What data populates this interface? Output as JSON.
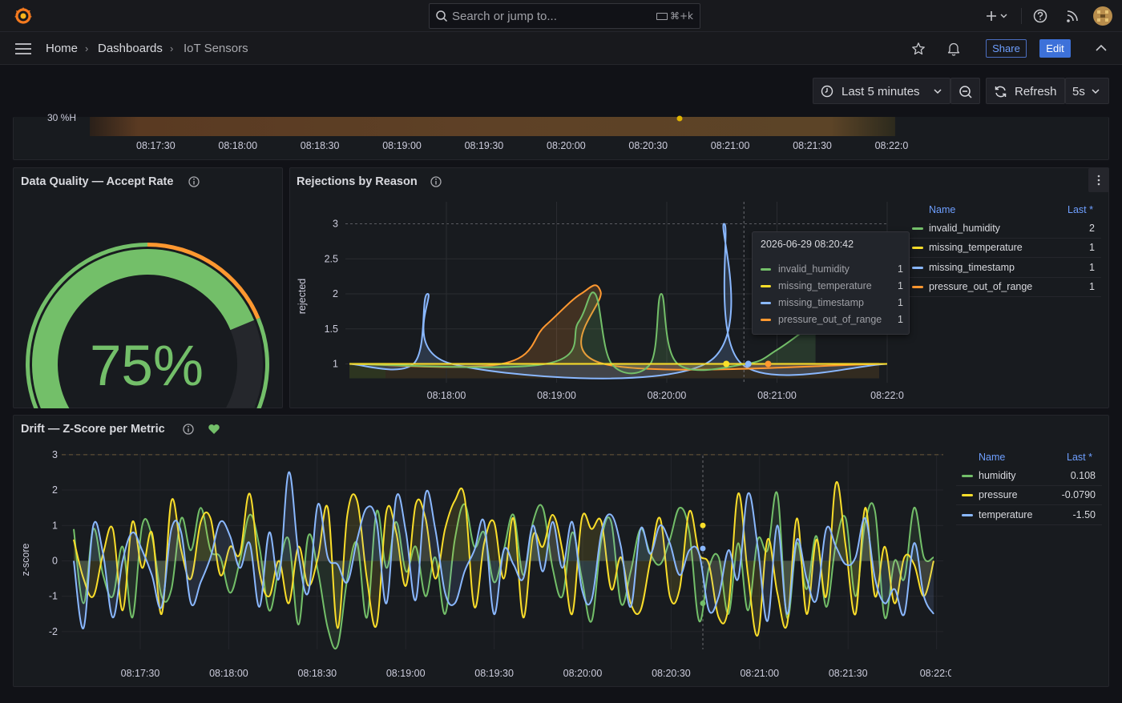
{
  "search": {
    "placeholder": "Search or jump to...",
    "shortcut": "⌘+k"
  },
  "breadcrumb": {
    "home": "Home",
    "dashboards": "Dashboards",
    "current": "IoT Sensors"
  },
  "toolbar": {
    "share_label": "Share",
    "edit_label": "Edit"
  },
  "time_picker": {
    "range_label": "Last 5 minutes",
    "refresh_label": "Refresh",
    "interval_label": "5s"
  },
  "top_panel": {
    "partial_label": "30 %H",
    "x_ticks": [
      "08:17:30",
      "08:18:00",
      "08:18:30",
      "08:19:00",
      "08:19:30",
      "08:20:00",
      "08:20:30",
      "08:21:00",
      "08:21:30",
      "08:22:0"
    ]
  },
  "gauge_panel": {
    "title": "Data Quality — Accept Rate",
    "value_text": "75%",
    "value": 75,
    "min": 0,
    "max": 100,
    "thresholds": [
      {
        "color": "#f2495c"
      },
      {
        "color": "#73bf69"
      },
      {
        "color": "#ff9830"
      },
      {
        "color": "#73bf69"
      }
    ]
  },
  "rejections_panel": {
    "title": "Rejections by Reason",
    "legend": {
      "name_header": "Name",
      "last_header": "Last *",
      "items": [
        {
          "name": "invalid_humidity",
          "last": "2",
          "color": "#73bf69"
        },
        {
          "name": "missing_temperature",
          "last": "1",
          "color": "#fade2a"
        },
        {
          "name": "missing_timestamp",
          "last": "1",
          "color": "#8ab8ff"
        },
        {
          "name": "pressure_out_of_range",
          "last": "1",
          "color": "#ff9830"
        }
      ]
    },
    "tooltip": {
      "time": "2026-06-29 08:20:42",
      "rows": [
        {
          "name": "invalid_humidity",
          "value": "1",
          "color": "#73bf69"
        },
        {
          "name": "missing_temperature",
          "value": "1",
          "color": "#fade2a"
        },
        {
          "name": "missing_timestamp",
          "value": "1",
          "color": "#8ab8ff"
        },
        {
          "name": "pressure_out_of_range",
          "value": "1",
          "color": "#ff9830"
        }
      ]
    }
  },
  "drift_panel": {
    "title": "Drift — Z-Score per Metric",
    "legend": {
      "name_header": "Name",
      "last_header": "Last *",
      "items": [
        {
          "name": "humidity",
          "last": "0.108",
          "color": "#73bf69"
        },
        {
          "name": "pressure",
          "last": "-0.0790",
          "color": "#fade2a"
        },
        {
          "name": "temperature",
          "last": "-1.50",
          "color": "#8ab8ff"
        }
      ]
    }
  },
  "chart_data": [
    {
      "type": "line",
      "id": "rejections",
      "ylabel": "rejected",
      "ylim": [
        0.8,
        3.2
      ],
      "y_ticks": [
        "3",
        "2.5",
        "2",
        "1.5",
        "1"
      ],
      "x_ticks": [
        "08:18:00",
        "08:19:00",
        "08:20:00",
        "08:21:00",
        "08:22:0"
      ],
      "x_minutes": [
        0,
        1,
        2,
        3,
        4
      ],
      "xlim_minutes": [
        -0.88,
        4.0
      ],
      "series": [
        {
          "name": "missing_timestamp",
          "color": "#8ab8ff",
          "points": [
            [
              -0.88,
              1
            ],
            [
              -0.3,
              1
            ],
            [
              -0.17,
              2
            ],
            [
              0.05,
              1
            ],
            [
              2.35,
              1
            ],
            [
              2.52,
              3
            ],
            [
              2.68,
              1
            ],
            [
              4.0,
              1
            ]
          ]
        },
        {
          "name": "pressure_out_of_range",
          "color": "#ff9830",
          "points": [
            [
              -0.88,
              1
            ],
            [
              0.5,
              1
            ],
            [
              0.9,
              1.55
            ],
            [
              1.22,
              2
            ],
            [
              1.4,
              2.03
            ],
            [
              1.43,
              1
            ],
            [
              4.0,
              1
            ]
          ]
        },
        {
          "name": "invalid_humidity",
          "color": "#73bf69",
          "points": [
            [
              -0.88,
              1
            ],
            [
              0.9,
              1
            ],
            [
              1.2,
              1.6
            ],
            [
              1.35,
              2
            ],
            [
              1.5,
              1
            ],
            [
              1.85,
              1
            ],
            [
              1.95,
              2
            ],
            [
              2.1,
              1
            ],
            [
              2.72,
              1
            ],
            [
              3.0,
              1.2
            ],
            [
              3.35,
              1.6
            ]
          ]
        },
        {
          "name": "missing_temperature",
          "color": "#fade2a",
          "points": [
            [
              -0.88,
              1
            ],
            [
              4.0,
              1
            ]
          ]
        }
      ]
    },
    {
      "type": "line",
      "id": "drift",
      "ylabel": "z-score",
      "ylim": [
        -2.5,
        3.2
      ],
      "y_ticks": [
        "3",
        "2",
        "1",
        "0",
        "-1",
        "-2"
      ],
      "x_ticks": [
        "08:17:30",
        "08:18:00",
        "08:18:30",
        "08:19:00",
        "08:19:30",
        "08:20:00",
        "08:20:30",
        "08:21:00",
        "08:21:30",
        "08:22:0"
      ],
      "threshold": 3,
      "series": [
        {
          "name": "humidity",
          "color": "#73bf69",
          "values": [
            0.9,
            -1.2,
            0.9,
            -0.4,
            -1.0,
            0.4,
            -1.6,
            1.0,
            0.7,
            -1.0,
            -0.8,
            1.2,
            0.3,
            1.5,
            0.3,
            0.1,
            -0.9,
            0.0,
            1.3,
            0.4,
            -1.4,
            -0.2,
            0.6,
            -1.8,
            0.7,
            -0.3,
            -1.9,
            -2.4,
            -0.5,
            0.5,
            -1.6,
            1.4,
            -0.2,
            1.1,
            -0.3,
            0.4,
            -1.0,
            0.1,
            -1.5,
            0.6,
            1.6,
            0.4,
            0.8,
            -0.6,
            0.3,
            1.3,
            -0.4,
            1.1,
            1.5,
            -0.2,
            -1.0,
            0.8,
            -0.5,
            -1.7,
            0.6,
            1.1,
            -1.2,
            -0.3,
            0.9,
            0.2,
            -0.1,
            0.6,
            1.5,
            0.8,
            -1.7,
            -0.2,
            0.1,
            -1.5,
            0.5,
            -1.4,
            0.6,
            0.3,
            1.9,
            -1.6,
            0.5,
            -0.8,
            0.7,
            -1.3,
            0.5,
            1.2,
            -1.0,
            1.1,
            1.4,
            -1.6,
            0.0,
            -0.5,
            1.5,
            0.1,
            0.1
          ]
        },
        {
          "name": "pressure",
          "color": "#fade2a",
          "values": [
            0.6,
            -0.5,
            -1.0,
            0.2,
            0.9,
            -1.4,
            1.1,
            -0.2,
            0.8,
            -1.5,
            1.7,
            0.3,
            -0.5,
            1.1,
            1.2,
            -0.4,
            0.4,
            0.2,
            1.9,
            -0.3,
            -1.0,
            0.0,
            -1.2,
            0.4,
            -0.7,
            0.1,
            1.5,
            -1.9,
            1.3,
            1.7,
            -0.5,
            -1.8,
            1.4,
            0.8,
            -0.7,
            1.6,
            1.2,
            -0.5,
            0.9,
            1.7,
            1.8,
            -1.3,
            0.5,
            1.1,
            -0.5,
            1.2,
            -1.6,
            0.7,
            0.4,
            1.3,
            0.3,
            -1.5,
            1.2,
            0.9,
            1.1,
            -0.8,
            0.1,
            -1.2,
            -1.4,
            0.0,
            1.2,
            -1.0,
            -0.8,
            1.4,
            0.2,
            -0.1,
            -1.6,
            -1.3,
            1.9,
            -0.4,
            -2.1,
            0.6,
            -0.9,
            -1.8,
            1.2,
            -1.5,
            0.6,
            -1.0,
            2.2,
            0.4,
            -1.5,
            1.5,
            -1.0,
            0.4,
            -1.2,
            0.1,
            -0.1,
            -1.0,
            0.0
          ]
        },
        {
          "name": "temperature",
          "color": "#8ab8ff",
          "values": [
            0.0,
            -1.9,
            1.0,
            0.2,
            -1.6,
            0.0,
            0.8,
            0.3,
            -0.4,
            -1.3,
            0.9,
            0.8,
            -1.2,
            -0.6,
            0.1,
            1.1,
            0.7,
            -0.2,
            0.5,
            -1.3,
            0.8,
            -0.5,
            2.5,
            0.2,
            -0.9,
            1.6,
            0.1,
            -0.1,
            -0.6,
            0.6,
            1.5,
            1.1,
            -1.2,
            1.8,
            0.8,
            -1.1,
            1.9,
            0.9,
            -0.9,
            -1.2,
            -0.3,
            0.3,
            1.1,
            -1.5,
            0.3,
            -0.1,
            -0.5,
            1.0,
            -0.3,
            1.1,
            -0.2,
            1.1,
            -0.8,
            -1.1,
            0.8,
            1.3,
            0.4,
            -1.3,
            0.9,
            0.2,
            1.0,
            0.5,
            -0.4,
            0.3,
            0.2,
            -1.4,
            -1.0,
            0.3,
            -0.5,
            1.9,
            0.4,
            -1.7,
            1.0,
            -1.5,
            0.6,
            -0.5,
            -1.1,
            0.9,
            0.4,
            -0.1,
            0.1,
            1.2,
            -0.5,
            -1.2,
            -0.8,
            -1.5,
            0.5,
            -1.0,
            -1.5
          ]
        }
      ]
    }
  ]
}
